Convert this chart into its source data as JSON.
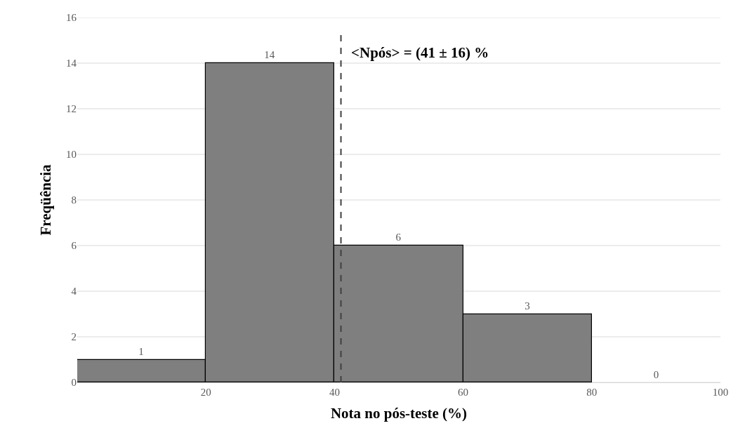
{
  "chart_data": {
    "type": "histogram",
    "xlabel": "Nota no pós-teste (%)",
    "ylabel": "Freqüência",
    "bins": [
      0,
      20,
      40,
      60,
      80,
      100
    ],
    "values": [
      1,
      14,
      6,
      3,
      0
    ],
    "color": "#7f7f7f",
    "data_labels": true,
    "xlim": [
      0,
      100
    ],
    "xticks": [
      20,
      40,
      60,
      80,
      100
    ],
    "ylim": [
      0,
      16
    ],
    "yticks": [
      0,
      2,
      4,
      6,
      8,
      10,
      12,
      14,
      16
    ],
    "grid": "y",
    "ref_lines": [
      {
        "axis": "x",
        "value": 41,
        "label": "<Npós> = (41 ± 16) %",
        "color": "#404040",
        "line_style": "dashed"
      }
    ]
  }
}
